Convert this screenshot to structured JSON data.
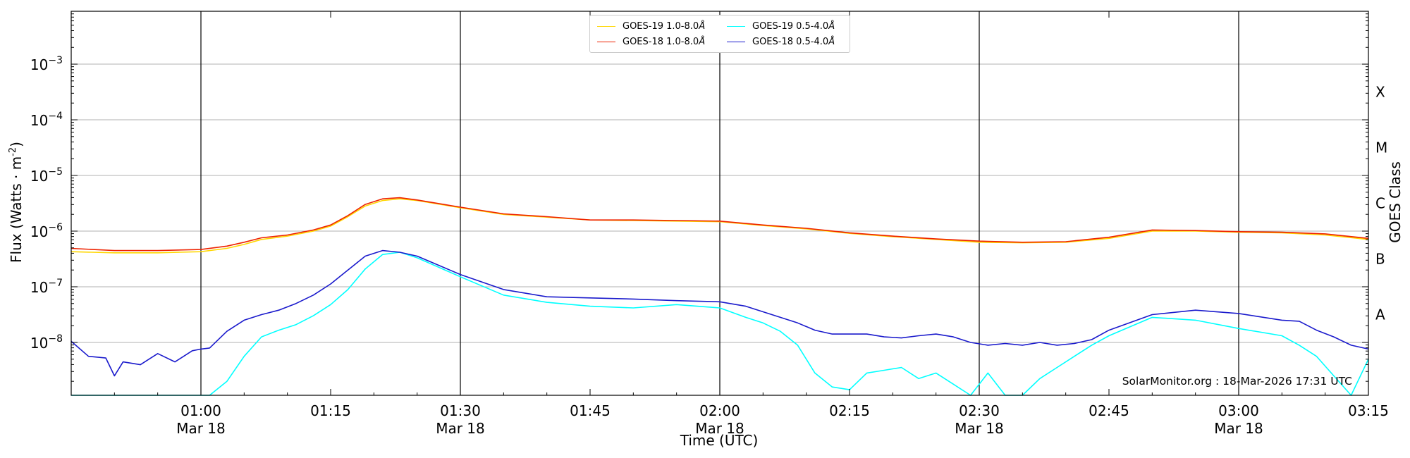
{
  "chart_data": {
    "type": "line",
    "xlabel": "Time (UTC)",
    "ylabel": "Flux (Watts · m",
    "ylabel_sup": "-2",
    "ylabel_close": ")",
    "right_label": "GOES Class",
    "x_unit": "minutes after 00:45 UTC, 18-Mar-2026",
    "xlim": [
      0,
      150
    ],
    "ylim_log10": [
      -8.95,
      -2.05
    ],
    "log_y": true,
    "grid_y": true,
    "x_ticks": [
      {
        "x": 15,
        "time": "01:00",
        "date": "Mar 18"
      },
      {
        "x": 30,
        "time": "01:15",
        "date": ""
      },
      {
        "x": 45,
        "time": "01:30",
        "date": "Mar 18"
      },
      {
        "x": 60,
        "time": "01:45",
        "date": ""
      },
      {
        "x": 75,
        "time": "02:00",
        "date": "Mar 18"
      },
      {
        "x": 90,
        "time": "02:15",
        "date": ""
      },
      {
        "x": 105,
        "time": "02:30",
        "date": "Mar 18"
      },
      {
        "x": 120,
        "time": "02:45",
        "date": ""
      },
      {
        "x": 135,
        "time": "03:00",
        "date": "Mar 18"
      },
      {
        "x": 150,
        "time": "03:15",
        "date": ""
      }
    ],
    "vlines": [
      15,
      45,
      75,
      105,
      135
    ],
    "y_ticks": [
      {
        "exp": -8,
        "label": "10",
        "sup": "−8"
      },
      {
        "exp": -7,
        "label": "10",
        "sup": "−7"
      },
      {
        "exp": -6,
        "label": "10",
        "sup": "−6"
      },
      {
        "exp": -5,
        "label": "10",
        "sup": "−5"
      },
      {
        "exp": -4,
        "label": "10",
        "sup": "−4"
      },
      {
        "exp": -3,
        "label": "10",
        "sup": "−3"
      }
    ],
    "goes_classes": [
      {
        "label": "A",
        "exp": -7.5
      },
      {
        "label": "B",
        "exp": -6.5
      },
      {
        "label": "C",
        "exp": -5.5
      },
      {
        "label": "M",
        "exp": -4.5
      },
      {
        "label": "X",
        "exp": -3.5
      }
    ],
    "series": [
      {
        "name": "GOES-19 1.0-8.0Å",
        "color": "#ffd700",
        "x": [
          0,
          5,
          10,
          15,
          18,
          20,
          22,
          25,
          28,
          30,
          32,
          34,
          36,
          38,
          40,
          45,
          50,
          55,
          60,
          65,
          70,
          75,
          80,
          85,
          90,
          95,
          100,
          105,
          110,
          115,
          120,
          125,
          130,
          135,
          140,
          145,
          150
        ],
        "log10": [
          -6.37,
          -6.39,
          -6.39,
          -6.37,
          -6.31,
          -6.24,
          -6.15,
          -6.09,
          -6.0,
          -5.91,
          -5.74,
          -5.55,
          -5.45,
          -5.42,
          -5.45,
          -5.58,
          -5.7,
          -5.75,
          -5.8,
          -5.81,
          -5.82,
          -5.83,
          -5.9,
          -5.96,
          -6.04,
          -6.1,
          -6.15,
          -6.2,
          -6.21,
          -6.2,
          -6.13,
          -6.0,
          -6.0,
          -6.02,
          -6.03,
          -6.07,
          -6.15
        ]
      },
      {
        "name": "GOES-18 1.0-8.0Å",
        "color": "#ee2200",
        "x": [
          0,
          5,
          10,
          15,
          18,
          20,
          22,
          25,
          28,
          30,
          32,
          34,
          36,
          38,
          40,
          45,
          50,
          55,
          60,
          65,
          70,
          75,
          80,
          85,
          90,
          95,
          100,
          105,
          110,
          115,
          120,
          125,
          130,
          135,
          140,
          145,
          150
        ],
        "log10": [
          -6.31,
          -6.35,
          -6.35,
          -6.33,
          -6.27,
          -6.2,
          -6.12,
          -6.07,
          -5.98,
          -5.89,
          -5.72,
          -5.52,
          -5.42,
          -5.4,
          -5.44,
          -5.57,
          -5.69,
          -5.74,
          -5.8,
          -5.8,
          -5.81,
          -5.82,
          -5.89,
          -5.95,
          -6.03,
          -6.09,
          -6.14,
          -6.18,
          -6.2,
          -6.19,
          -6.11,
          -5.98,
          -5.99,
          -6.01,
          -6.02,
          -6.05,
          -6.13
        ]
      },
      {
        "name": "GOES-19 0.5-4.0Å",
        "color": "#00ffff",
        "x": [
          0,
          15,
          16,
          18,
          20,
          22,
          24,
          26,
          28,
          30,
          32,
          34,
          36,
          38,
          40,
          45,
          50,
          55,
          60,
          65,
          70,
          75,
          78,
          80,
          82,
          84,
          86,
          88,
          90,
          92,
          94,
          96,
          98,
          100,
          102,
          104,
          106,
          108,
          110,
          112,
          114,
          116,
          118,
          120,
          125,
          130,
          135,
          140,
          142,
          144,
          146,
          148,
          150
        ],
        "log10": [
          -8.95,
          -8.95,
          -8.95,
          -8.7,
          -8.25,
          -7.9,
          -7.78,
          -7.68,
          -7.52,
          -7.32,
          -7.05,
          -6.68,
          -6.42,
          -6.38,
          -6.48,
          -6.82,
          -7.15,
          -7.28,
          -7.35,
          -7.38,
          -7.32,
          -7.38,
          -7.55,
          -7.65,
          -7.8,
          -8.05,
          -8.55,
          -8.8,
          -8.85,
          -8.55,
          -8.5,
          -8.45,
          -8.65,
          -8.55,
          -8.75,
          -8.95,
          -8.55,
          -8.95,
          -8.95,
          -8.65,
          -8.45,
          -8.25,
          -8.05,
          -7.88,
          -7.55,
          -7.6,
          -7.75,
          -7.88,
          -8.05,
          -8.25,
          -8.6,
          -8.95,
          -8.3
        ]
      },
      {
        "name": "GOES-18 0.5-4.0Å",
        "color": "#1a1acc",
        "x": [
          0,
          2,
          4,
          5,
          6,
          8,
          10,
          12,
          14,
          15,
          16,
          18,
          20,
          22,
          24,
          26,
          28,
          30,
          32,
          34,
          36,
          38,
          40,
          45,
          50,
          55,
          60,
          65,
          70,
          75,
          78,
          80,
          82,
          84,
          86,
          88,
          90,
          92,
          94,
          96,
          98,
          100,
          102,
          104,
          106,
          108,
          110,
          112,
          114,
          116,
          118,
          120,
          125,
          130,
          135,
          140,
          142,
          144,
          146,
          148,
          150
        ],
        "log10": [
          -7.98,
          -8.25,
          -8.28,
          -8.6,
          -8.35,
          -8.4,
          -8.2,
          -8.35,
          -8.15,
          -8.12,
          -8.1,
          -7.8,
          -7.6,
          -7.5,
          -7.42,
          -7.3,
          -7.15,
          -6.95,
          -6.7,
          -6.45,
          -6.35,
          -6.38,
          -6.45,
          -6.78,
          -7.05,
          -7.18,
          -7.2,
          -7.22,
          -7.25,
          -7.27,
          -7.35,
          -7.45,
          -7.55,
          -7.65,
          -7.78,
          -7.85,
          -7.85,
          -7.85,
          -7.9,
          -7.92,
          -7.88,
          -7.85,
          -7.9,
          -8.0,
          -8.05,
          -8.02,
          -8.05,
          -8.0,
          -8.05,
          -8.02,
          -7.95,
          -7.78,
          -7.5,
          -7.42,
          -7.48,
          -7.6,
          -7.62,
          -7.78,
          -7.9,
          -8.05,
          -8.12
        ]
      }
    ]
  },
  "legend": {
    "items": [
      {
        "label": "GOES-19 1.0-8.0",
        "unit": "Å",
        "color": "#ffd700"
      },
      {
        "label": "GOES-18 1.0-8.0",
        "unit": "Å",
        "color": "#ee2200"
      },
      {
        "label": "GOES-19 0.5-4.0",
        "unit": "Å",
        "color": "#00ffff"
      },
      {
        "label": "GOES-18 0.5-4.0",
        "unit": "Å",
        "color": "#1a1acc"
      }
    ]
  },
  "credit": "SolarMonitor.org : 18-Mar-2026 17:31 UTC"
}
